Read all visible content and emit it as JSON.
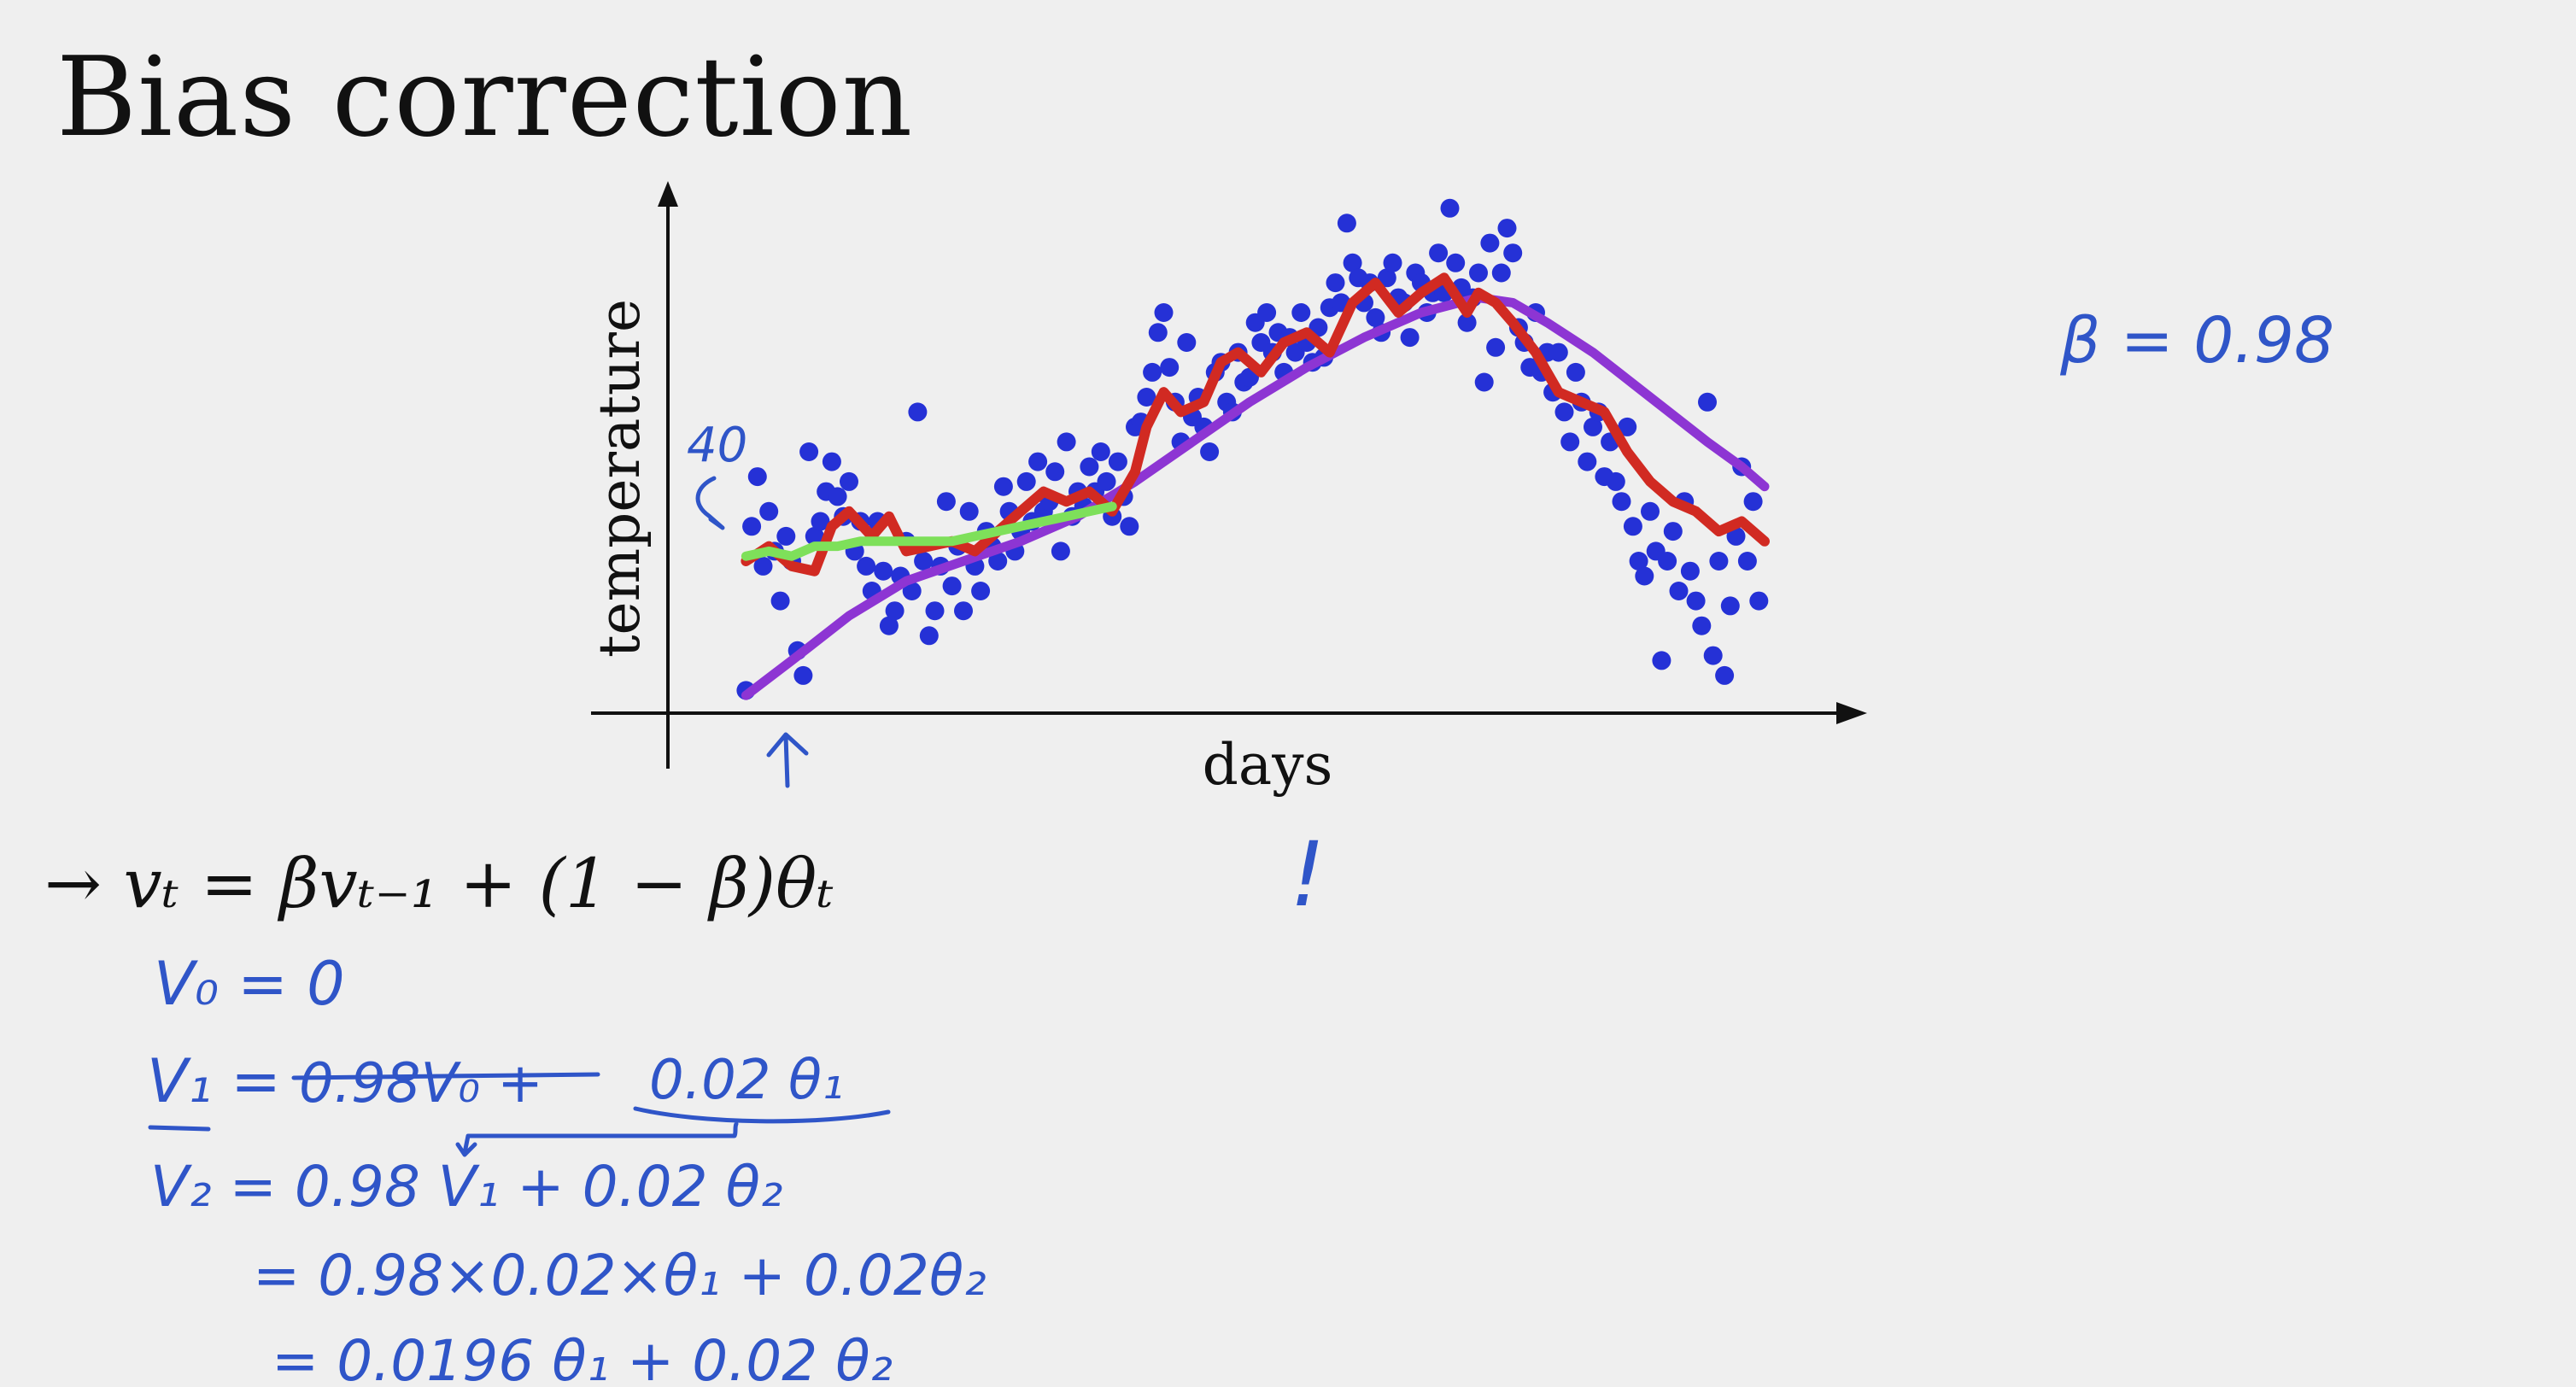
{
  "title": "Bias correction",
  "colors": {
    "dots": "#2531d6",
    "red": "#d12a22",
    "green": "#7ee05a",
    "purple": "#8d35d3",
    "ink": "#2f55c8"
  },
  "chart_data": {
    "type": "scatter",
    "xlabel": "days",
    "ylabel": "temperature",
    "ytick_annotation": "40",
    "xlim": [
      0,
      180
    ],
    "ylim": [
      0,
      100
    ],
    "points": [
      [
        2,
        2
      ],
      [
        3,
        35
      ],
      [
        4,
        45
      ],
      [
        5,
        27
      ],
      [
        6,
        38
      ],
      [
        7,
        30
      ],
      [
        8,
        20
      ],
      [
        9,
        33
      ],
      [
        10,
        28
      ],
      [
        11,
        10
      ],
      [
        12,
        5
      ],
      [
        13,
        50
      ],
      [
        14,
        33
      ],
      [
        15,
        36
      ],
      [
        16,
        42
      ],
      [
        17,
        48
      ],
      [
        18,
        41
      ],
      [
        19,
        37
      ],
      [
        20,
        44
      ],
      [
        21,
        30
      ],
      [
        22,
        36
      ],
      [
        23,
        27
      ],
      [
        24,
        22
      ],
      [
        25,
        36
      ],
      [
        26,
        26
      ],
      [
        27,
        15
      ],
      [
        28,
        18
      ],
      [
        29,
        25
      ],
      [
        30,
        32
      ],
      [
        31,
        22
      ],
      [
        32,
        58
      ],
      [
        33,
        28
      ],
      [
        34,
        13
      ],
      [
        35,
        18
      ],
      [
        36,
        27
      ],
      [
        37,
        40
      ],
      [
        38,
        23
      ],
      [
        39,
        31
      ],
      [
        40,
        18
      ],
      [
        41,
        38
      ],
      [
        42,
        27
      ],
      [
        43,
        22
      ],
      [
        44,
        34
      ],
      [
        45,
        31
      ],
      [
        46,
        28
      ],
      [
        47,
        43
      ],
      [
        48,
        38
      ],
      [
        49,
        30
      ],
      [
        50,
        34
      ],
      [
        51,
        44
      ],
      [
        52,
        36
      ],
      [
        53,
        48
      ],
      [
        54,
        38
      ],
      [
        55,
        40
      ],
      [
        56,
        46
      ],
      [
        57,
        30
      ],
      [
        58,
        52
      ],
      [
        59,
        37
      ],
      [
        60,
        42
      ],
      [
        61,
        39
      ],
      [
        62,
        47
      ],
      [
        63,
        42
      ],
      [
        64,
        50
      ],
      [
        65,
        44
      ],
      [
        66,
        37
      ],
      [
        67,
        48
      ],
      [
        68,
        41
      ],
      [
        69,
        35
      ],
      [
        70,
        55
      ],
      [
        71,
        56
      ],
      [
        72,
        61
      ],
      [
        73,
        66
      ],
      [
        74,
        74
      ],
      [
        75,
        78
      ],
      [
        76,
        67
      ],
      [
        77,
        60
      ],
      [
        78,
        52
      ],
      [
        79,
        72
      ],
      [
        80,
        57
      ],
      [
        81,
        61
      ],
      [
        82,
        55
      ],
      [
        83,
        50
      ],
      [
        84,
        66
      ],
      [
        85,
        68
      ],
      [
        86,
        60
      ],
      [
        87,
        58
      ],
      [
        88,
        70
      ],
      [
        89,
        64
      ],
      [
        90,
        65
      ],
      [
        91,
        76
      ],
      [
        92,
        72
      ],
      [
        93,
        78
      ],
      [
        94,
        70
      ],
      [
        95,
        74
      ],
      [
        96,
        66
      ],
      [
        97,
        73
      ],
      [
        98,
        70
      ],
      [
        99,
        78
      ],
      [
        100,
        72
      ],
      [
        101,
        68
      ],
      [
        102,
        75
      ],
      [
        103,
        69
      ],
      [
        104,
        79
      ],
      [
        105,
        84
      ],
      [
        106,
        80
      ],
      [
        107,
        96
      ],
      [
        108,
        88
      ],
      [
        109,
        85
      ],
      [
        110,
        80
      ],
      [
        111,
        84
      ],
      [
        112,
        77
      ],
      [
        113,
        74
      ],
      [
        114,
        85
      ],
      [
        115,
        88
      ],
      [
        116,
        81
      ],
      [
        117,
        80
      ],
      [
        118,
        73
      ],
      [
        119,
        86
      ],
      [
        120,
        84
      ],
      [
        121,
        78
      ],
      [
        122,
        82
      ],
      [
        123,
        90
      ],
      [
        124,
        82
      ],
      [
        125,
        99
      ],
      [
        126,
        88
      ],
      [
        127,
        83
      ],
      [
        128,
        76
      ],
      [
        129,
        81
      ],
      [
        130,
        86
      ],
      [
        131,
        64
      ],
      [
        132,
        92
      ],
      [
        133,
        71
      ],
      [
        134,
        86
      ],
      [
        135,
        95
      ],
      [
        136,
        90
      ],
      [
        137,
        75
      ],
      [
        138,
        72
      ],
      [
        139,
        67
      ],
      [
        140,
        78
      ],
      [
        141,
        66
      ],
      [
        142,
        70
      ],
      [
        143,
        62
      ],
      [
        144,
        70
      ],
      [
        145,
        58
      ],
      [
        146,
        52
      ],
      [
        147,
        66
      ],
      [
        148,
        60
      ],
      [
        149,
        48
      ],
      [
        150,
        55
      ],
      [
        151,
        58
      ],
      [
        152,
        45
      ],
      [
        153,
        52
      ],
      [
        154,
        44
      ],
      [
        155,
        40
      ],
      [
        156,
        55
      ],
      [
        157,
        35
      ],
      [
        158,
        28
      ],
      [
        159,
        25
      ],
      [
        160,
        38
      ],
      [
        161,
        30
      ],
      [
        162,
        8
      ],
      [
        163,
        28
      ],
      [
        164,
        34
      ],
      [
        165,
        22
      ],
      [
        166,
        40
      ],
      [
        167,
        26
      ],
      [
        168,
        20
      ],
      [
        169,
        15
      ],
      [
        170,
        60
      ],
      [
        171,
        9
      ],
      [
        172,
        28
      ],
      [
        173,
        5
      ],
      [
        174,
        19
      ],
      [
        175,
        33
      ],
      [
        176,
        47
      ],
      [
        177,
        28
      ],
      [
        178,
        40
      ],
      [
        179,
        20
      ]
    ],
    "series": [
      {
        "x": [
          2,
          6,
          10,
          14,
          17,
          20,
          24,
          27,
          30,
          34,
          38,
          42,
          46,
          50,
          54,
          58,
          62,
          66,
          70,
          72,
          75,
          78,
          82,
          85,
          88,
          92,
          96,
          100,
          104,
          108,
          112,
          116,
          120,
          124,
          128,
          130,
          133,
          136,
          140,
          144,
          148,
          152,
          156,
          160,
          164,
          168,
          172,
          176,
          180
        ],
        "y": [
          28,
          31,
          27,
          26,
          35,
          38,
          33,
          37,
          30,
          31,
          32,
          30,
          34,
          38,
          42,
          40,
          42,
          38,
          46,
          55,
          62,
          58,
          60,
          68,
          70,
          66,
          72,
          74,
          70,
          80,
          84,
          78,
          82,
          85,
          78,
          82,
          80,
          76,
          70,
          62,
          60,
          58,
          50,
          44,
          40,
          38,
          34,
          36,
          32
        ]
      },
      {
        "x": [
          2,
          6,
          10,
          14,
          18,
          22,
          26,
          30,
          34,
          38,
          42,
          46,
          50,
          54,
          58,
          62,
          66
        ],
        "y": [
          29,
          30,
          29,
          31,
          31,
          32,
          32,
          32,
          32,
          32,
          33,
          34,
          35,
          36,
          37,
          38,
          39
        ]
      },
      {
        "x": [
          2,
          10,
          20,
          30,
          40,
          50,
          60,
          70,
          80,
          90,
          100,
          110,
          120,
          130,
          136,
          142,
          150,
          160,
          170,
          176,
          180
        ],
        "y": [
          1,
          8,
          17,
          24,
          28,
          32,
          37,
          44,
          52,
          60,
          67,
          73,
          78,
          81,
          80,
          76,
          70,
          61,
          52,
          47,
          43
        ]
      }
    ]
  },
  "annotations": {
    "beta": "β = 0.98",
    "num40": "40",
    "exclamation": "!",
    "formula": "→ vₜ = βvₜ₋₁ + (1 − β)θₜ",
    "line_v0": "V₀ = 0",
    "line_v1_prefix": "V₁ =",
    "line_v1_struck": "0.98V₀ +",
    "line_v1_rest": "0.02 θ₁",
    "line_v2": "V₂ = 0.98 V₁ + 0.02 θ₂",
    "line_v3": "= 0.98×0.02×θ₁ + 0.02θ₂",
    "line_v4": "= 0.0196 θ₁ + 0.02 θ₂"
  }
}
